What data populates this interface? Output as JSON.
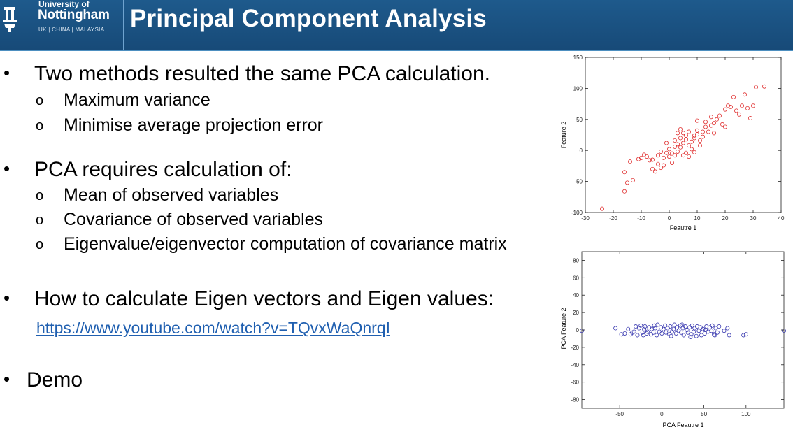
{
  "header": {
    "university_of": "University of",
    "university_name": "Nottingham",
    "campuses": "UK | CHINA | MALAYSIA",
    "title": "Principal Component Analysis",
    "bar_color": "#1a5080"
  },
  "content": {
    "bullet_glyph": "•",
    "sub_glyph": "o",
    "point1": {
      "text": "Two methods resulted the same PCA calculation.",
      "subs": [
        "Maximum variance",
        "Minimise average projection error"
      ]
    },
    "point2": {
      "text": "PCA requires calculation of:",
      "subs": [
        "Mean of observed variables",
        "Covariance of observed variables",
        "Eigenvalue/eigenvector computation of covariance matrix"
      ]
    },
    "point3": {
      "text": "How to calculate Eigen vectors and Eigen values:",
      "link": "https://www.youtube.com/watch?v=TQvxWaQnrqI"
    },
    "point4": {
      "text": "Demo"
    }
  },
  "chart_data": [
    {
      "type": "scatter",
      "title": "",
      "xlabel": "Feautre 1",
      "ylabel": "Feature 2",
      "xlim": [
        -30,
        40
      ],
      "ylim": [
        -100,
        150
      ],
      "xticks": [
        -30,
        -20,
        -10,
        0,
        10,
        20,
        30,
        40
      ],
      "yticks": [
        -100,
        -50,
        0,
        50,
        100,
        150
      ],
      "color": "#e03030",
      "points": [
        [
          -24,
          -94
        ],
        [
          -16,
          -66
        ],
        [
          -15,
          -52
        ],
        [
          -16,
          -35
        ],
        [
          -13,
          -48
        ],
        [
          -14,
          -18
        ],
        [
          -11,
          -14
        ],
        [
          -10,
          -12
        ],
        [
          -9,
          -7
        ],
        [
          -8,
          -10
        ],
        [
          -6,
          -15
        ],
        [
          -6,
          -30
        ],
        [
          -5,
          -34
        ],
        [
          -4,
          -22
        ],
        [
          -4,
          -8
        ],
        [
          -3,
          -2
        ],
        [
          -2,
          -24
        ],
        [
          -2,
          -12
        ],
        [
          -1,
          -4
        ],
        [
          -1,
          12
        ],
        [
          0,
          2
        ],
        [
          0,
          -10
        ],
        [
          1,
          -5
        ],
        [
          1,
          -20
        ],
        [
          2,
          6
        ],
        [
          2,
          -8
        ],
        [
          3,
          -2
        ],
        [
          3,
          10
        ],
        [
          4,
          20
        ],
        [
          4,
          5
        ],
        [
          5,
          -8
        ],
        [
          5,
          12
        ],
        [
          6,
          -4
        ],
        [
          6,
          24
        ],
        [
          6,
          18
        ],
        [
          7,
          8
        ],
        [
          7,
          30
        ],
        [
          8,
          14
        ],
        [
          8,
          2
        ],
        [
          9,
          20
        ],
        [
          9,
          -3
        ],
        [
          10,
          32
        ],
        [
          10,
          26
        ],
        [
          10,
          48
        ],
        [
          11,
          8
        ],
        [
          11,
          16
        ],
        [
          12,
          22
        ],
        [
          13,
          38
        ],
        [
          13,
          46
        ],
        [
          14,
          30
        ],
        [
          15,
          54
        ],
        [
          15,
          40
        ],
        [
          16,
          28
        ],
        [
          17,
          50
        ],
        [
          18,
          56
        ],
        [
          19,
          42
        ],
        [
          20,
          38
        ],
        [
          20,
          66
        ],
        [
          21,
          72
        ],
        [
          22,
          70
        ],
        [
          23,
          86
        ],
        [
          24,
          64
        ],
        [
          25,
          58
        ],
        [
          26,
          72
        ],
        [
          27,
          90
        ],
        [
          28,
          68
        ],
        [
          29,
          52
        ],
        [
          30,
          72
        ],
        [
          31,
          102
        ],
        [
          34,
          103
        ],
        [
          3,
          28
        ],
        [
          2,
          16
        ],
        [
          4,
          34
        ],
        [
          -3,
          -28
        ],
        [
          -7,
          -16
        ],
        [
          5,
          28
        ],
        [
          7,
          -10
        ],
        [
          9,
          24
        ],
        [
          12,
          30
        ],
        [
          16,
          44
        ]
      ]
    },
    {
      "type": "scatter",
      "title": "",
      "xlabel": "PCA Feautre 1",
      "ylabel": "PCA Feature 2",
      "xlim": [
        -95,
        145
      ],
      "ylim": [
        -90,
        90
      ],
      "xticks": [
        -50,
        0,
        50,
        100
      ],
      "yticks": [
        -80,
        -60,
        -40,
        -20,
        0,
        20,
        40,
        60,
        80
      ],
      "color": "#3a3ab0",
      "points": [
        [
          -95,
          -1
        ],
        [
          -55,
          2
        ],
        [
          -48,
          -5
        ],
        [
          -44,
          -4
        ],
        [
          -40,
          1
        ],
        [
          -37,
          -5
        ],
        [
          -35,
          -3
        ],
        [
          -33,
          -2
        ],
        [
          -31,
          4
        ],
        [
          -29,
          -6
        ],
        [
          -27,
          2
        ],
        [
          -25,
          5
        ],
        [
          -23,
          -3
        ],
        [
          -21,
          1
        ],
        [
          -20,
          4
        ],
        [
          -18,
          -4
        ],
        [
          -17,
          -2
        ],
        [
          -15,
          3
        ],
        [
          -13,
          -5
        ],
        [
          -12,
          1
        ],
        [
          -10,
          -3
        ],
        [
          -8,
          2
        ],
        [
          -6,
          -6
        ],
        [
          -5,
          6
        ],
        [
          -3,
          -2
        ],
        [
          -1,
          3
        ],
        [
          0,
          -4
        ],
        [
          2,
          1
        ],
        [
          4,
          5
        ],
        [
          5,
          -3
        ],
        [
          7,
          2
        ],
        [
          9,
          -5
        ],
        [
          10,
          4
        ],
        [
          12,
          -2
        ],
        [
          14,
          1
        ],
        [
          15,
          6
        ],
        [
          17,
          -4
        ],
        [
          18,
          3
        ],
        [
          20,
          -1
        ],
        [
          22,
          5
        ],
        [
          23,
          -3
        ],
        [
          25,
          2
        ],
        [
          26,
          -6
        ],
        [
          28,
          4
        ],
        [
          30,
          0
        ],
        [
          31,
          -3
        ],
        [
          33,
          3
        ],
        [
          35,
          -5
        ],
        [
          36,
          5
        ],
        [
          38,
          -2
        ],
        [
          39,
          2
        ],
        [
          41,
          -7
        ],
        [
          42,
          4
        ],
        [
          44,
          -1
        ],
        [
          46,
          3
        ],
        [
          47,
          -6
        ],
        [
          49,
          1
        ],
        [
          51,
          -4
        ],
        [
          53,
          4
        ],
        [
          55,
          -2
        ],
        [
          57,
          3
        ],
        [
          59,
          -1
        ],
        [
          60,
          5
        ],
        [
          62,
          -5
        ],
        [
          64,
          2
        ],
        [
          66,
          -3
        ],
        [
          68,
          4
        ],
        [
          74,
          -1
        ],
        [
          78,
          2
        ],
        [
          80,
          -6
        ],
        [
          97,
          -6
        ],
        [
          100,
          -5
        ],
        [
          145,
          -1
        ],
        [
          -22,
          -6
        ],
        [
          -9,
          5
        ],
        [
          11,
          -7
        ],
        [
          24,
          6
        ],
        [
          34,
          -8
        ],
        [
          52,
          0
        ],
        [
          63,
          -6
        ]
      ]
    }
  ]
}
